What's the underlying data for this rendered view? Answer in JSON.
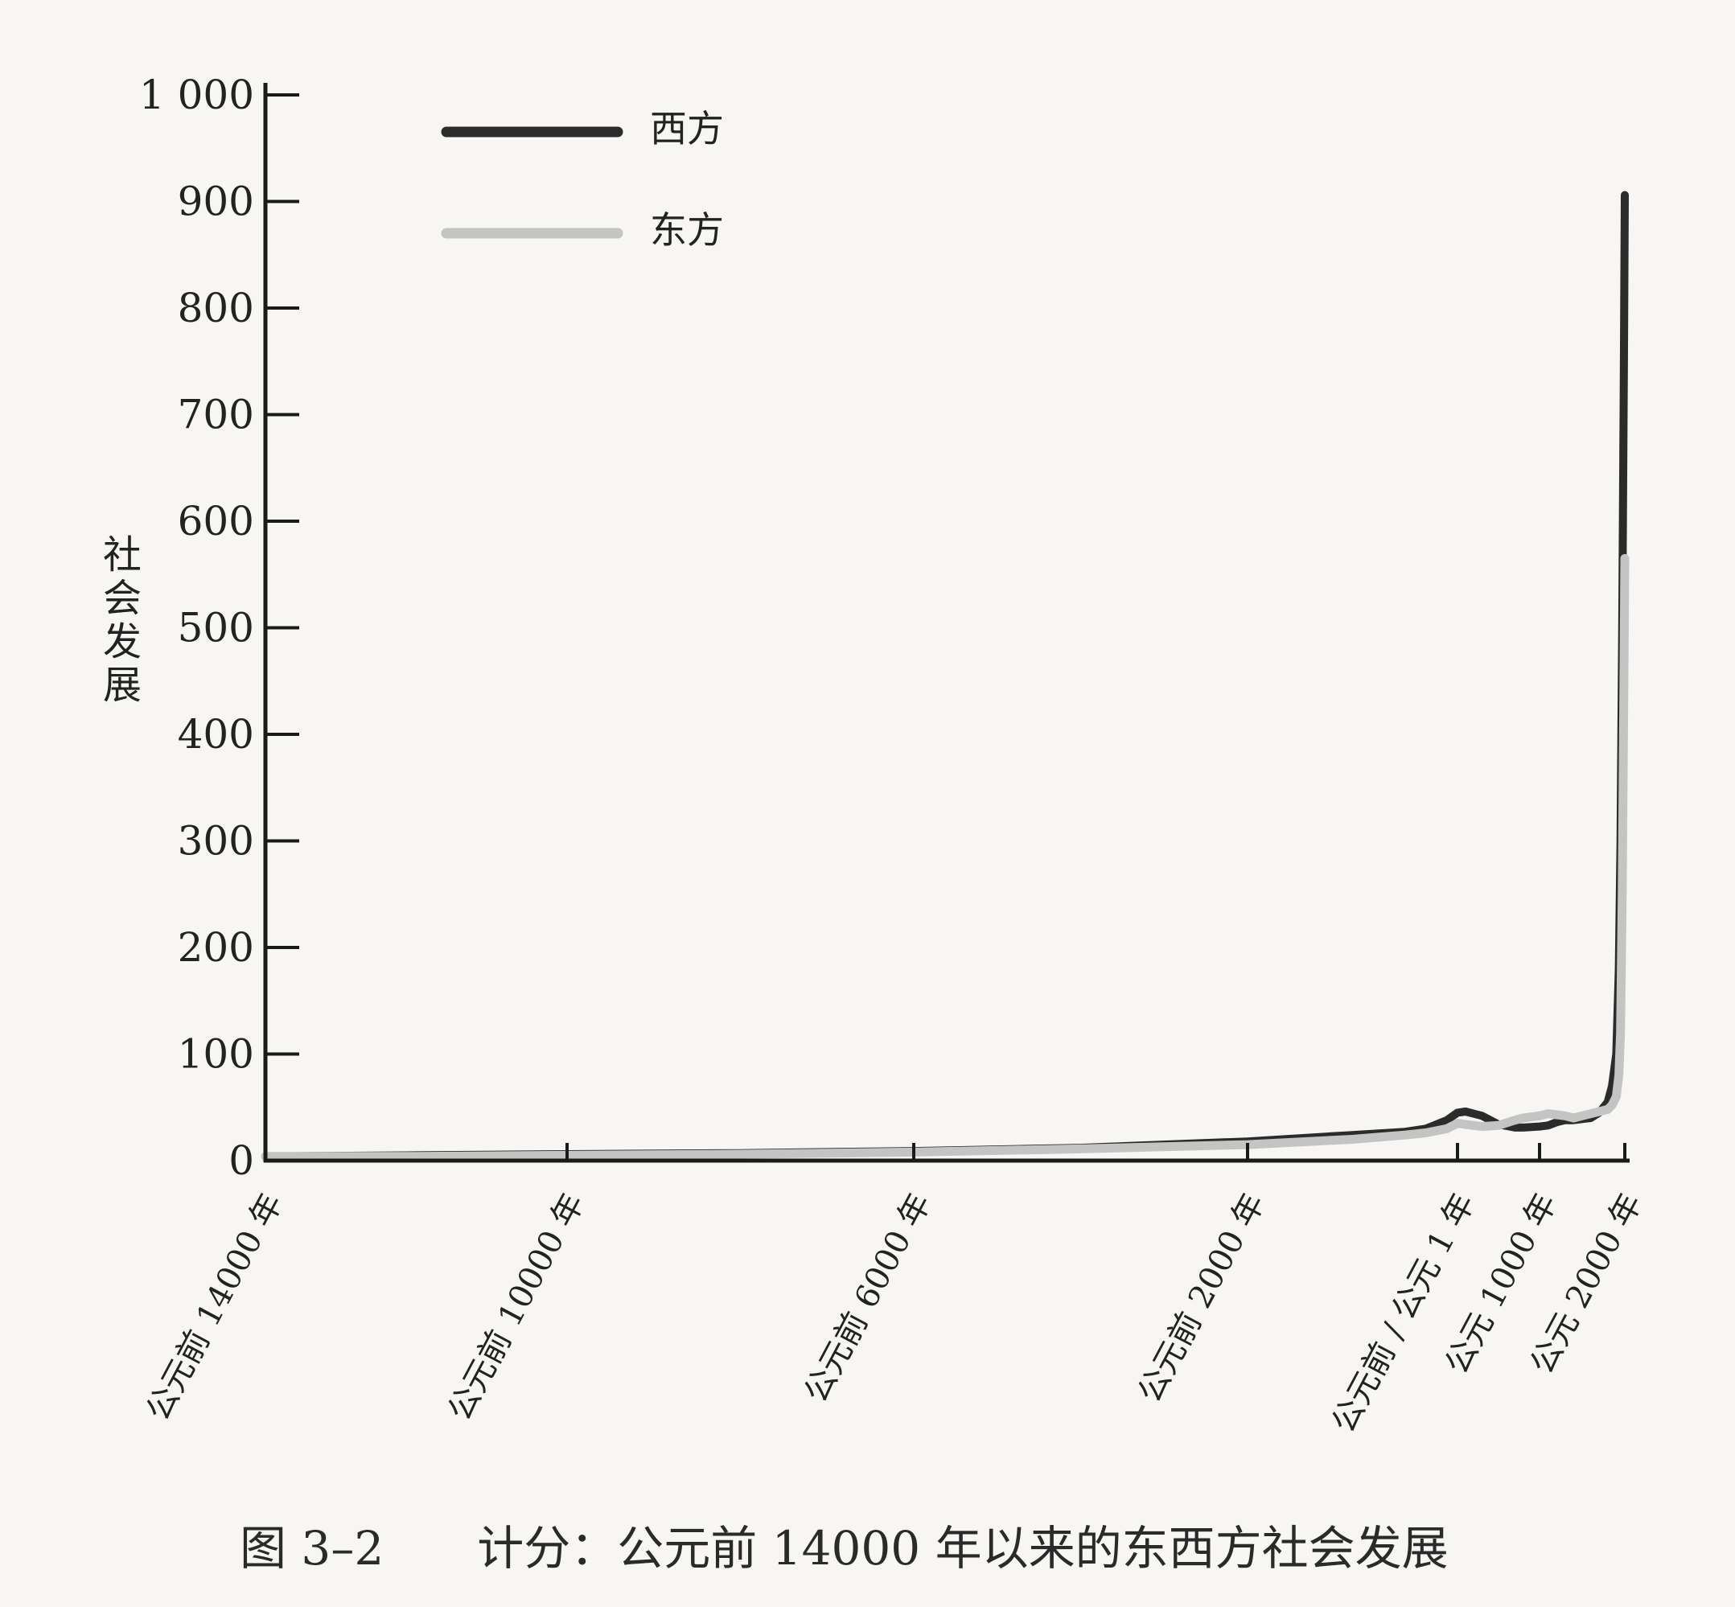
{
  "chart_data": {
    "type": "line",
    "title": "",
    "xlabel": "",
    "ylabel": "社会发展",
    "ylim": [
      0,
      1000
    ],
    "yticks": [
      0,
      100,
      200,
      300,
      400,
      500,
      600,
      700,
      800,
      900,
      1000
    ],
    "ytick_labels": [
      "0",
      "100",
      "200",
      "300",
      "400",
      "500",
      "600",
      "700",
      "800",
      "900",
      "1 000"
    ],
    "xlim": [
      -14000,
      2000
    ],
    "xticks": [
      -14000,
      -10000,
      -6000,
      -2000,
      1,
      1000,
      2000
    ],
    "xtick_labels": [
      "公元前 14000 年",
      "公元前 10000 年",
      "公元前 6000 年",
      "公元前 2000 年",
      "公元前 / 公元 1 年",
      "公元 1000 年",
      "公元 2000 年"
    ],
    "grid": false,
    "legend_position": "top-left",
    "series": [
      {
        "name": "西方",
        "color": "#2b2b2b",
        "x": [
          -14000,
          -12000,
          -10000,
          -8000,
          -6000,
          -4000,
          -2000,
          -1000,
          -500,
          -300,
          -100,
          1,
          100,
          200,
          300,
          500,
          700,
          800,
          1000,
          1100,
          1200,
          1300,
          1400,
          1500,
          1600,
          1700,
          1800,
          1850,
          1900,
          1930,
          1950,
          1970,
          1990,
          2000
        ],
        "y": [
          4,
          5,
          6,
          7,
          9,
          12,
          18,
          24,
          27,
          30,
          38,
          45,
          46,
          44,
          42,
          34,
          31,
          31,
          32,
          33,
          36,
          38,
          38,
          39,
          40,
          45,
          55,
          70,
          100,
          180,
          300,
          500,
          750,
          906
        ]
      },
      {
        "name": "东方",
        "color": "#c4c4c4",
        "x": [
          -14000,
          -12000,
          -10000,
          -8000,
          -6000,
          -4000,
          -2000,
          -1000,
          -500,
          -300,
          -100,
          1,
          100,
          300,
          500,
          700,
          800,
          1000,
          1100,
          1200,
          1300,
          1400,
          1500,
          1600,
          1700,
          1800,
          1850,
          1900,
          1930,
          1950,
          1970,
          1990,
          2000
        ],
        "y": [
          4,
          4,
          5,
          6,
          8,
          11,
          15,
          20,
          24,
          26,
          30,
          35,
          34,
          32,
          33,
          38,
          40,
          42,
          44,
          43,
          42,
          40,
          42,
          44,
          46,
          48,
          52,
          60,
          80,
          120,
          250,
          450,
          565
        ]
      }
    ]
  },
  "caption": "图 3–2　　计分：公元前 14000 年以来的东西方社会发展"
}
